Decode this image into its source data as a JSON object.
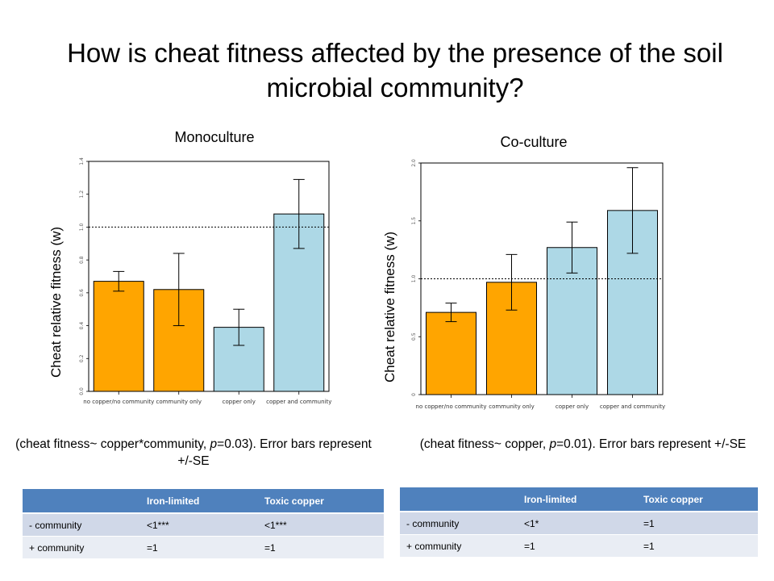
{
  "page": {
    "title": "How is cheat fitness affected by the presence of the soil microbial community?"
  },
  "chart_data": [
    {
      "type": "bar",
      "title": "Monoculture",
      "ylabel": "Cheat relative fitness (w)",
      "categories": [
        "no copper/no community",
        "community only",
        "copper only",
        "copper and community"
      ],
      "values": [
        0.67,
        0.62,
        0.39,
        1.08
      ],
      "error": [
        0.06,
        0.22,
        0.11,
        0.21
      ],
      "bar_colors": [
        "#ffa500",
        "#ffa500",
        "#add8e6",
        "#add8e6"
      ],
      "ylim": [
        0,
        1.4
      ],
      "yticks": [
        0.0,
        0.2,
        0.4,
        0.6,
        0.8,
        1.0,
        1.2,
        1.4
      ],
      "ytick_labels": [
        "0.0",
        "0.2",
        "0.4",
        "0.6",
        "0.8",
        "1.0",
        "1.2",
        "1.4"
      ],
      "reference_line": 1.0,
      "grid": false,
      "caption_pre": "(cheat fitness~ copper*community, ",
      "caption_p": "p",
      "caption_post": "=0.03). Error bars represent +/-SE"
    },
    {
      "type": "bar",
      "title": "Co-culture",
      "ylabel": "Cheat relative fitness (w)",
      "categories": [
        "no copper/no community",
        "community only",
        "copper only",
        "copper and community"
      ],
      "values": [
        0.71,
        0.97,
        1.27,
        1.59
      ],
      "error": [
        0.08,
        0.24,
        0.22,
        0.37
      ],
      "bar_colors": [
        "#ffa500",
        "#ffa500",
        "#add8e6",
        "#add8e6"
      ],
      "ylim": [
        0,
        2.0
      ],
      "yticks": [
        0.0,
        0.5,
        1.0,
        1.5,
        2.0
      ],
      "ytick_labels": [
        "0",
        "0.5",
        "1.0",
        "1.5",
        "2.0"
      ],
      "reference_line": 1.0,
      "grid": false,
      "caption_pre": "(cheat fitness~ copper, ",
      "caption_p": "p",
      "caption_post": "=0.01). Error bars represent +/-SE"
    }
  ],
  "tables": [
    {
      "headers": [
        "",
        "Iron-limited",
        "Toxic copper"
      ],
      "rows": [
        [
          "- community",
          "<1***",
          "<1***"
        ],
        [
          "+ community",
          "=1",
          "=1"
        ]
      ]
    },
    {
      "headers": [
        "",
        "Iron-limited",
        "Toxic copper"
      ],
      "rows": [
        [
          "- community",
          "<1*",
          "=1"
        ],
        [
          "+ community",
          "=1",
          "=1"
        ]
      ]
    }
  ]
}
